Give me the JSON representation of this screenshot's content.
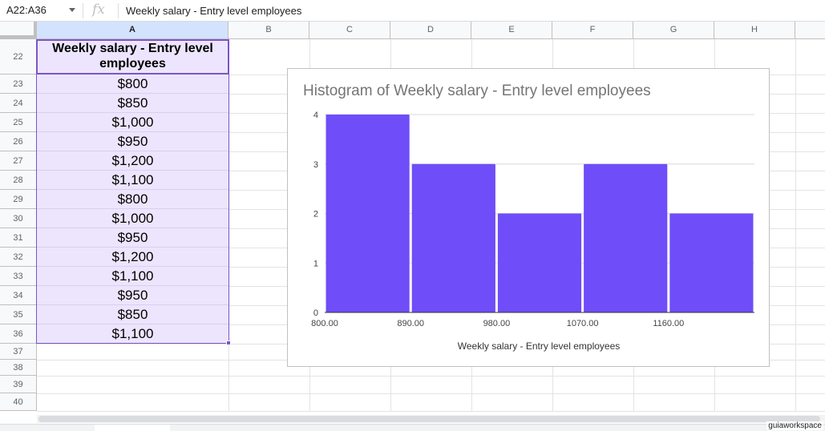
{
  "formula_bar": {
    "name_box": "A22:A36",
    "fx_label": "fx",
    "content": "Weekly salary - Entry level employees"
  },
  "columns": [
    "A",
    "B",
    "C",
    "D",
    "E",
    "F",
    "G",
    "H"
  ],
  "selected_column": "A",
  "rows": [
    "22",
    "23",
    "24",
    "25",
    "26",
    "27",
    "28",
    "29",
    "30",
    "31",
    "32",
    "33",
    "34",
    "35",
    "36",
    "37",
    "38",
    "39",
    "40"
  ],
  "header_cell": "Weekly salary - Entry level employees",
  "salaries": [
    "$800",
    "$850",
    "$1,000",
    "$950",
    "$1,200",
    "$1,100",
    "$800",
    "$1,000",
    "$950",
    "$1,200",
    "$1,100",
    "$950",
    "$850",
    "$1,100"
  ],
  "chart_data": {
    "type": "bar",
    "title": "Histogram of Weekly salary - Entry level employees",
    "xlabel": "Weekly salary - Entry level employees",
    "ylabel": "",
    "categories": [
      "800.00",
      "890.00",
      "980.00",
      "1070.00",
      "1160.00"
    ],
    "x_tick_labels": [
      "800.00",
      "890.00",
      "980.00",
      "1070.00",
      "1160.00"
    ],
    "values": [
      4,
      3,
      2,
      3,
      2
    ],
    "ylim": [
      0,
      4
    ],
    "y_ticks": [
      "0",
      "1",
      "2",
      "3",
      "4"
    ],
    "grid": true,
    "bar_color": "#6f4df8"
  },
  "watermark": "guiaworkspace"
}
